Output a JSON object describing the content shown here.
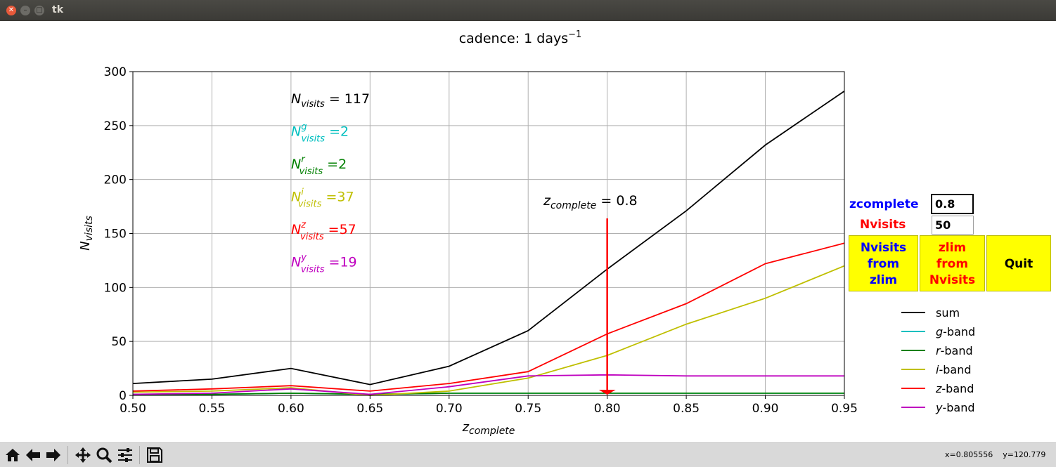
{
  "window": {
    "title": "tk"
  },
  "chart_data": {
    "type": "line",
    "title": "cadence: 1 days",
    "title_sup": "−1",
    "xlabel": "complete",
    "xlabel_prefix": "z",
    "ylabel": "visits",
    "ylabel_prefix": "N",
    "xlim": [
      0.5,
      0.95
    ],
    "ylim": [
      0,
      300
    ],
    "xticks": [
      "0.50",
      "0.55",
      "0.60",
      "0.65",
      "0.70",
      "0.75",
      "0.80",
      "0.85",
      "0.90",
      "0.95"
    ],
    "yticks": [
      "0",
      "50",
      "100",
      "150",
      "200",
      "250",
      "300"
    ],
    "grid": true,
    "x": [
      0.5,
      0.55,
      0.6,
      0.65,
      0.7,
      0.75,
      0.8,
      0.85,
      0.9,
      0.95
    ],
    "series": [
      {
        "name": "sum",
        "color": "#000000",
        "values": [
          11,
          15,
          25,
          10,
          27,
          60,
          117,
          171,
          232,
          282
        ]
      },
      {
        "name": "g-band",
        "color": "#00bfbf",
        "values": [
          1,
          1,
          2,
          1,
          2,
          2,
          2,
          2,
          2,
          2
        ]
      },
      {
        "name": "r-band",
        "color": "#008000",
        "values": [
          1,
          1,
          2,
          1,
          2,
          2,
          2,
          2,
          2,
          2
        ]
      },
      {
        "name": "i-band",
        "color": "#bfbf00",
        "values": [
          3,
          4,
          7,
          0,
          4,
          16,
          37,
          66,
          90,
          120
        ]
      },
      {
        "name": "z-band",
        "color": "#ff0000",
        "values": [
          4,
          6,
          9,
          4,
          11,
          22,
          57,
          85,
          122,
          141
        ]
      },
      {
        "name": "y-band",
        "color": "#bf00bf",
        "values": [
          1,
          2,
          6,
          1,
          8,
          18,
          19,
          18,
          18,
          18
        ]
      }
    ],
    "legend": {
      "placement": "right",
      "entries": [
        {
          "prefix": "",
          "name": "sum",
          "color": "#000000"
        },
        {
          "prefix": "g",
          "name": "-band",
          "color": "#00bfbf"
        },
        {
          "prefix": "r",
          "name": "-band",
          "color": "#008000"
        },
        {
          "prefix": "i",
          "name": "-band",
          "color": "#bfbf00"
        },
        {
          "prefix": "z",
          "name": "-band",
          "color": "#ff0000"
        },
        {
          "prefix": "y",
          "name": "-band",
          "color": "#bf00bf"
        }
      ]
    },
    "annotations": [
      {
        "base": "N",
        "sub": "visits",
        "sup": "",
        "text": " = 117",
        "color": "#000000"
      },
      {
        "base": "N",
        "sub": "visits",
        "sup": "g",
        "text": " =2",
        "color": "#00bfbf"
      },
      {
        "base": "N",
        "sub": "visits",
        "sup": "r",
        "text": " =2",
        "color": "#008000"
      },
      {
        "base": "N",
        "sub": "visits",
        "sup": "i",
        "text": " =37",
        "color": "#bfbf00"
      },
      {
        "base": "N",
        "sub": "visits",
        "sup": "z",
        "text": " =57",
        "color": "#ff0000"
      },
      {
        "base": "N",
        "sub": "visits",
        "sup": "y",
        "text": " =19",
        "color": "#bf00bf"
      }
    ],
    "zcomplete_label": {
      "base": "z",
      "sub": "complete",
      "text": " = 0.8"
    },
    "arrow": {
      "x": 0.8,
      "y_from": 164,
      "y_to": 0,
      "color": "#ff0000"
    }
  },
  "controls": {
    "zcomplete_label": "zcomplete",
    "zcomplete_label_color": "#0000ff",
    "zcomplete_value": "0.8",
    "nvisits_label": "Nvisits",
    "nvisits_label_color": "#ff0000",
    "nvisits_value": "50",
    "button_nvisits_from_zlim": "Nvisits\nfrom\nzlim",
    "button_nvisits_from_zlim_color": "#0000ff",
    "button_zlim_from_nvisits": "zlim\nfrom\nNvisits",
    "button_zlim_from_nvisits_color": "#ff0000",
    "button_quit": "Quit"
  },
  "toolbar": {
    "items": [
      "home-icon",
      "back-icon",
      "forward-icon",
      "pan-icon",
      "zoom-icon",
      "configure-icon",
      "save-icon"
    ],
    "coords": "x=0.805556    y=120.779"
  }
}
